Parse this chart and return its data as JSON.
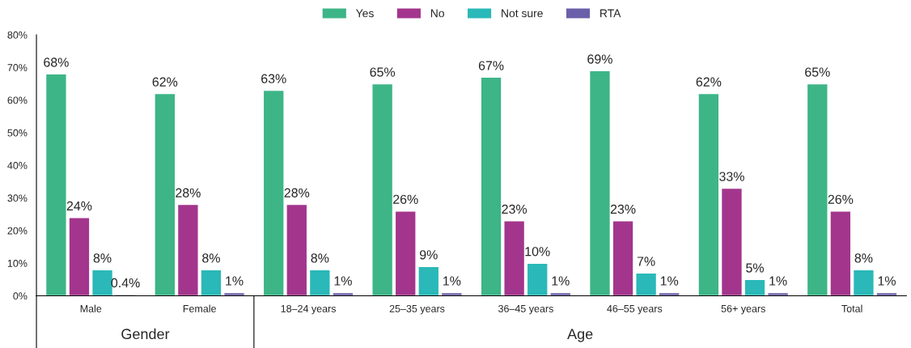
{
  "chart_data": {
    "type": "bar",
    "categories": [
      "Male",
      "Female",
      "18–24 years",
      "25–35 years",
      "36–45 years",
      "46–55 years",
      "56+ years",
      "Total"
    ],
    "series": [
      {
        "name": "Yes",
        "color": "#3db587",
        "values": [
          68,
          62,
          63,
          65,
          67,
          69,
          62,
          65
        ],
        "value_labels": [
          "68%",
          "62%",
          "63%",
          "65%",
          "67%",
          "69%",
          "62%",
          "65%"
        ]
      },
      {
        "name": "No",
        "color": "#a3358d",
        "values": [
          24,
          28,
          28,
          26,
          23,
          23,
          33,
          26
        ],
        "value_labels": [
          "24%",
          "28%",
          "28%",
          "26%",
          "23%",
          "23%",
          "33%",
          "26%"
        ]
      },
      {
        "name": "Not sure",
        "color": "#2bb8b8",
        "values": [
          8,
          8,
          8,
          9,
          10,
          7,
          5,
          8
        ],
        "value_labels": [
          "8%",
          "8%",
          "8%",
          "9%",
          "10%",
          "7%",
          "5%",
          "8%"
        ]
      },
      {
        "name": "RTA",
        "color": "#6a5fa9",
        "values": [
          0.4,
          1,
          1,
          1,
          1,
          1,
          1,
          1
        ],
        "value_labels": [
          "0.4%",
          "1%",
          "1%",
          "1%",
          "1%",
          "1%",
          "1%",
          "1%"
        ]
      }
    ],
    "ylim": [
      0,
      80
    ],
    "yticks": [
      {
        "value": 0,
        "label": "0%"
      },
      {
        "value": 10,
        "label": "10%"
      },
      {
        "value": 20,
        "label": "20%"
      },
      {
        "value": 30,
        "label": "30%"
      },
      {
        "value": 40,
        "label": "40%"
      },
      {
        "value": 50,
        "label": "50%"
      },
      {
        "value": 60,
        "label": "60%"
      },
      {
        "value": 70,
        "label": "70%"
      },
      {
        "value": 80,
        "label": "80%"
      }
    ],
    "annotations": [
      "Gender",
      "Age"
    ],
    "legend": "top",
    "grid": false
  }
}
